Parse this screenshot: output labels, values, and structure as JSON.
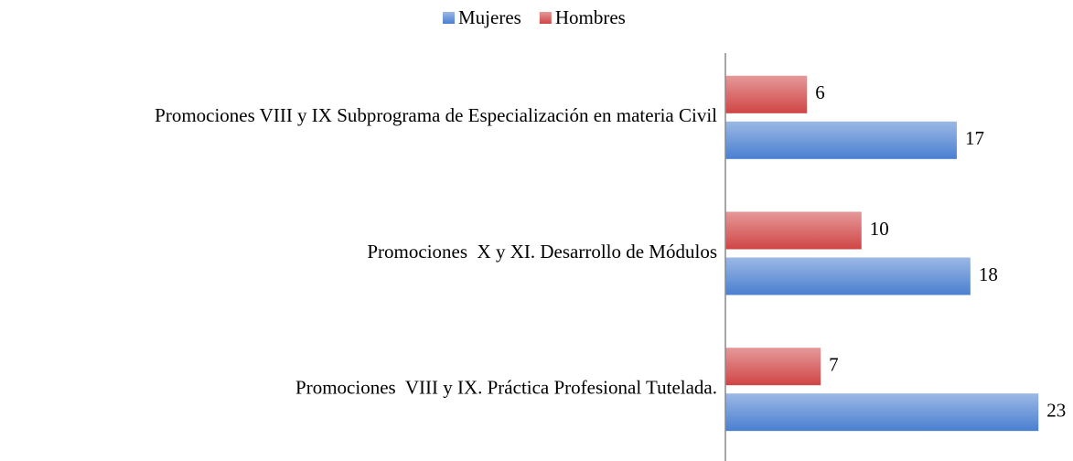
{
  "chart_data": {
    "type": "barh",
    "categories": [
      "Promociones VIII y IX Subprograma de Especialización en materia Civil",
      "Promociones  X y XI. Desarrollo de Módulos",
      "Promociones  VIII y IX. Práctica Profesional Tutelada."
    ],
    "series": [
      {
        "name": "Mujeres",
        "color": "#4a7fd0",
        "values": [
          17,
          18,
          23
        ]
      },
      {
        "name": "Hombres",
        "color": "#d04545",
        "values": [
          6,
          10,
          7
        ]
      }
    ],
    "xlim": [
      0,
      25
    ],
    "legend": "top"
  }
}
